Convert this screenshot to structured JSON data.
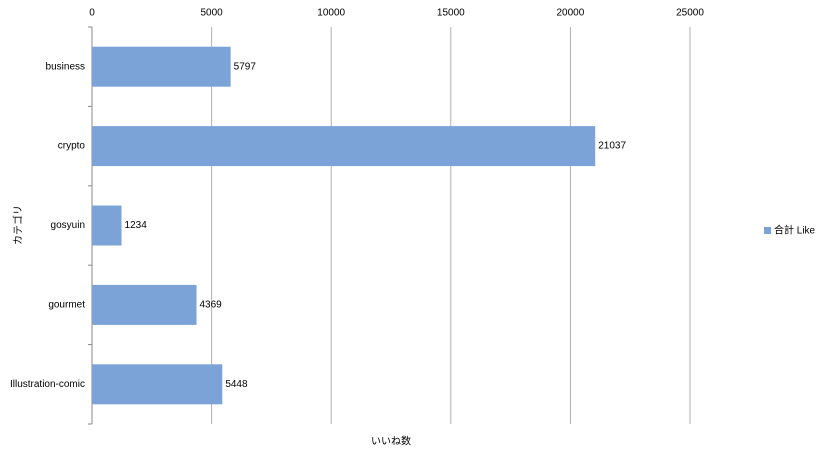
{
  "chart_data": {
    "type": "bar",
    "orientation": "horizontal",
    "x_label": "いいね数",
    "y_label": "カテゴリ",
    "categories": [
      "business",
      "crypto",
      "gosyuin",
      "gourmet",
      "Illustration-comic"
    ],
    "series": [
      {
        "name": "合計 Like",
        "color": "#7ba3d8",
        "values": [
          5797,
          21037,
          1234,
          4369,
          5448
        ]
      }
    ],
    "xlim": [
      0,
      25000
    ],
    "xticks": [
      0,
      5000,
      10000,
      15000,
      20000,
      25000
    ],
    "grid": true,
    "legend": "right"
  }
}
